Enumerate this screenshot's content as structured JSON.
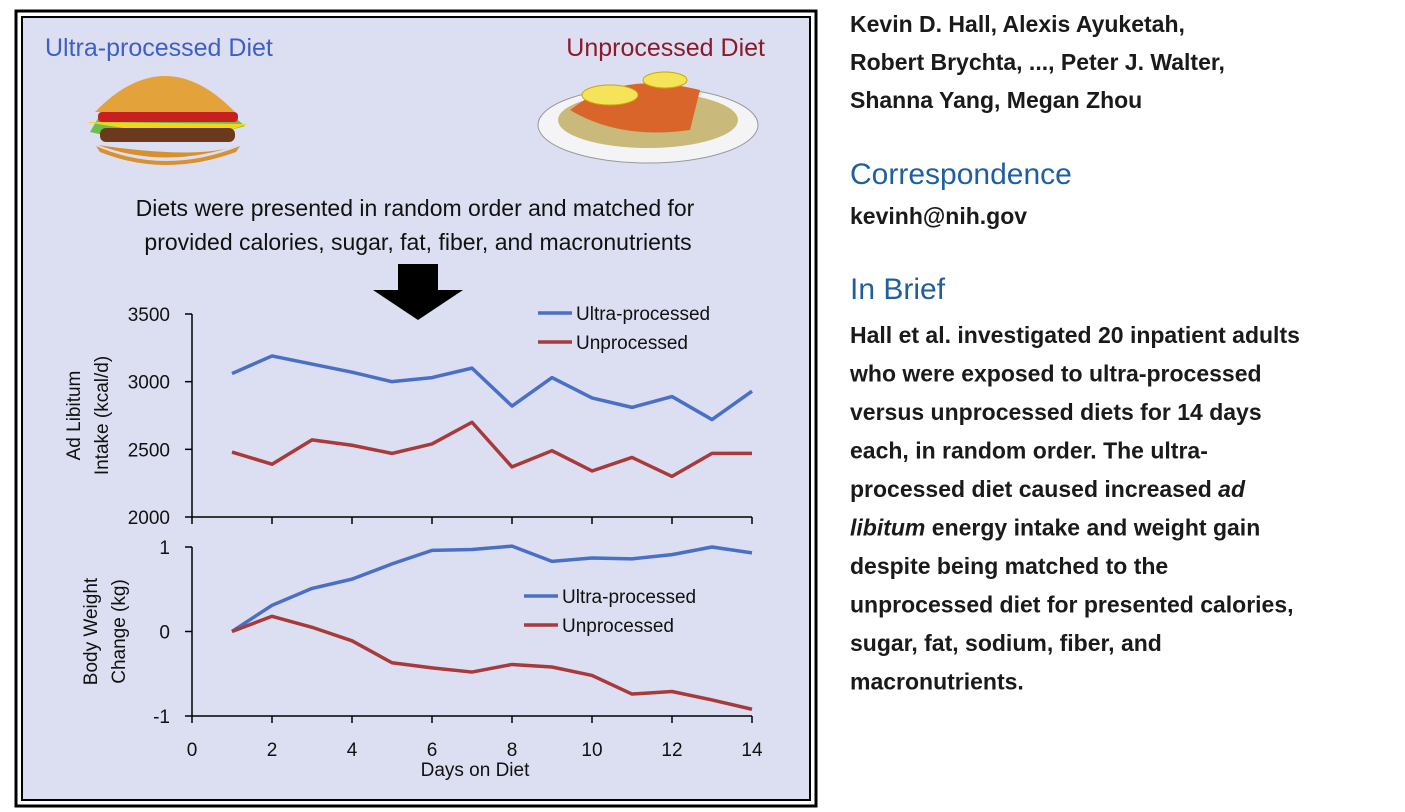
{
  "panel": {
    "left_label": "Ultra-processed Diet",
    "right_label": "Unprocessed Diet",
    "caption": [
      "Diets were presented in random order and matched for",
      "provided calories, sugar, fat, fiber, and macronutrients"
    ]
  },
  "chart_data": [
    {
      "type": "line",
      "ylabel": [
        "Ad Libitum",
        "Intake (kcal/d)"
      ],
      "x": [
        1,
        2,
        3,
        4,
        5,
        6,
        7,
        8,
        9,
        10,
        11,
        12,
        13,
        14
      ],
      "xlim": [
        0,
        14
      ],
      "ylim": [
        2000,
        3500
      ],
      "yticks": [
        2000,
        2500,
        3000,
        3500
      ],
      "legend": "upper right",
      "series": [
        {
          "name": "Ultra-processed",
          "color": "#4a6fc7",
          "values": [
            3060,
            3190,
            3130,
            3070,
            3000,
            3030,
            3100,
            2820,
            3030,
            2880,
            2810,
            2890,
            2720,
            2930
          ]
        },
        {
          "name": "Unprocessed",
          "color": "#a83a3a",
          "values": [
            2480,
            2390,
            2570,
            2530,
            2470,
            2540,
            2700,
            2370,
            2490,
            2340,
            2440,
            2300,
            2470,
            2470
          ]
        }
      ]
    },
    {
      "type": "line",
      "ylabel": [
        "Body Weight",
        "Change (kg)"
      ],
      "xlabel": "Days on Diet",
      "x": [
        1,
        2,
        3,
        4,
        5,
        6,
        7,
        8,
        9,
        10,
        11,
        12,
        13,
        14
      ],
      "xlim": [
        0,
        14
      ],
      "xticks": [
        0,
        2,
        4,
        6,
        8,
        10,
        12,
        14
      ],
      "ylim": [
        -1,
        1
      ],
      "yticks": [
        -1,
        0,
        1
      ],
      "legend": "center right",
      "series": [
        {
          "name": "Ultra-processed",
          "color": "#4a6fc7",
          "values": [
            0,
            0.31,
            0.51,
            0.62,
            0.8,
            0.96,
            0.97,
            1.01,
            0.83,
            0.87,
            0.86,
            0.91,
            1.0,
            0.93
          ]
        },
        {
          "name": "Unprocessed",
          "color": "#a83a3a",
          "values": [
            0,
            0.18,
            0.05,
            -0.11,
            -0.37,
            -0.43,
            -0.48,
            -0.39,
            -0.42,
            -0.52,
            -0.74,
            -0.71,
            -0.81,
            -0.92
          ]
        }
      ]
    }
  ],
  "authors": [
    "Kevin D. Hall, Alexis Ayuketah,",
    "Robert Brychta, ..., Peter J. Walter,",
    "Shanna Yang, Megan Zhou"
  ],
  "correspondence": {
    "heading": "Correspondence",
    "email": "kevinh@nih.gov"
  },
  "in_brief": {
    "heading": "In Brief",
    "lines": [
      [
        "Hall et al. investigated 20 inpatient adults"
      ],
      [
        "who were exposed to ultra-processed"
      ],
      [
        "versus unprocessed diets for 14 days"
      ],
      [
        "each, in random order. The ultra-"
      ],
      [
        "processed diet caused increased ",
        {
          "italic": "ad"
        }
      ],
      [
        {
          "italic": "libitum"
        },
        " energy intake and weight gain"
      ],
      [
        "despite being matched to the"
      ],
      [
        "unprocessed diet for presented calories,"
      ],
      [
        "sugar, fat, sodium, fiber, and"
      ],
      [
        "macronutrients."
      ]
    ]
  }
}
